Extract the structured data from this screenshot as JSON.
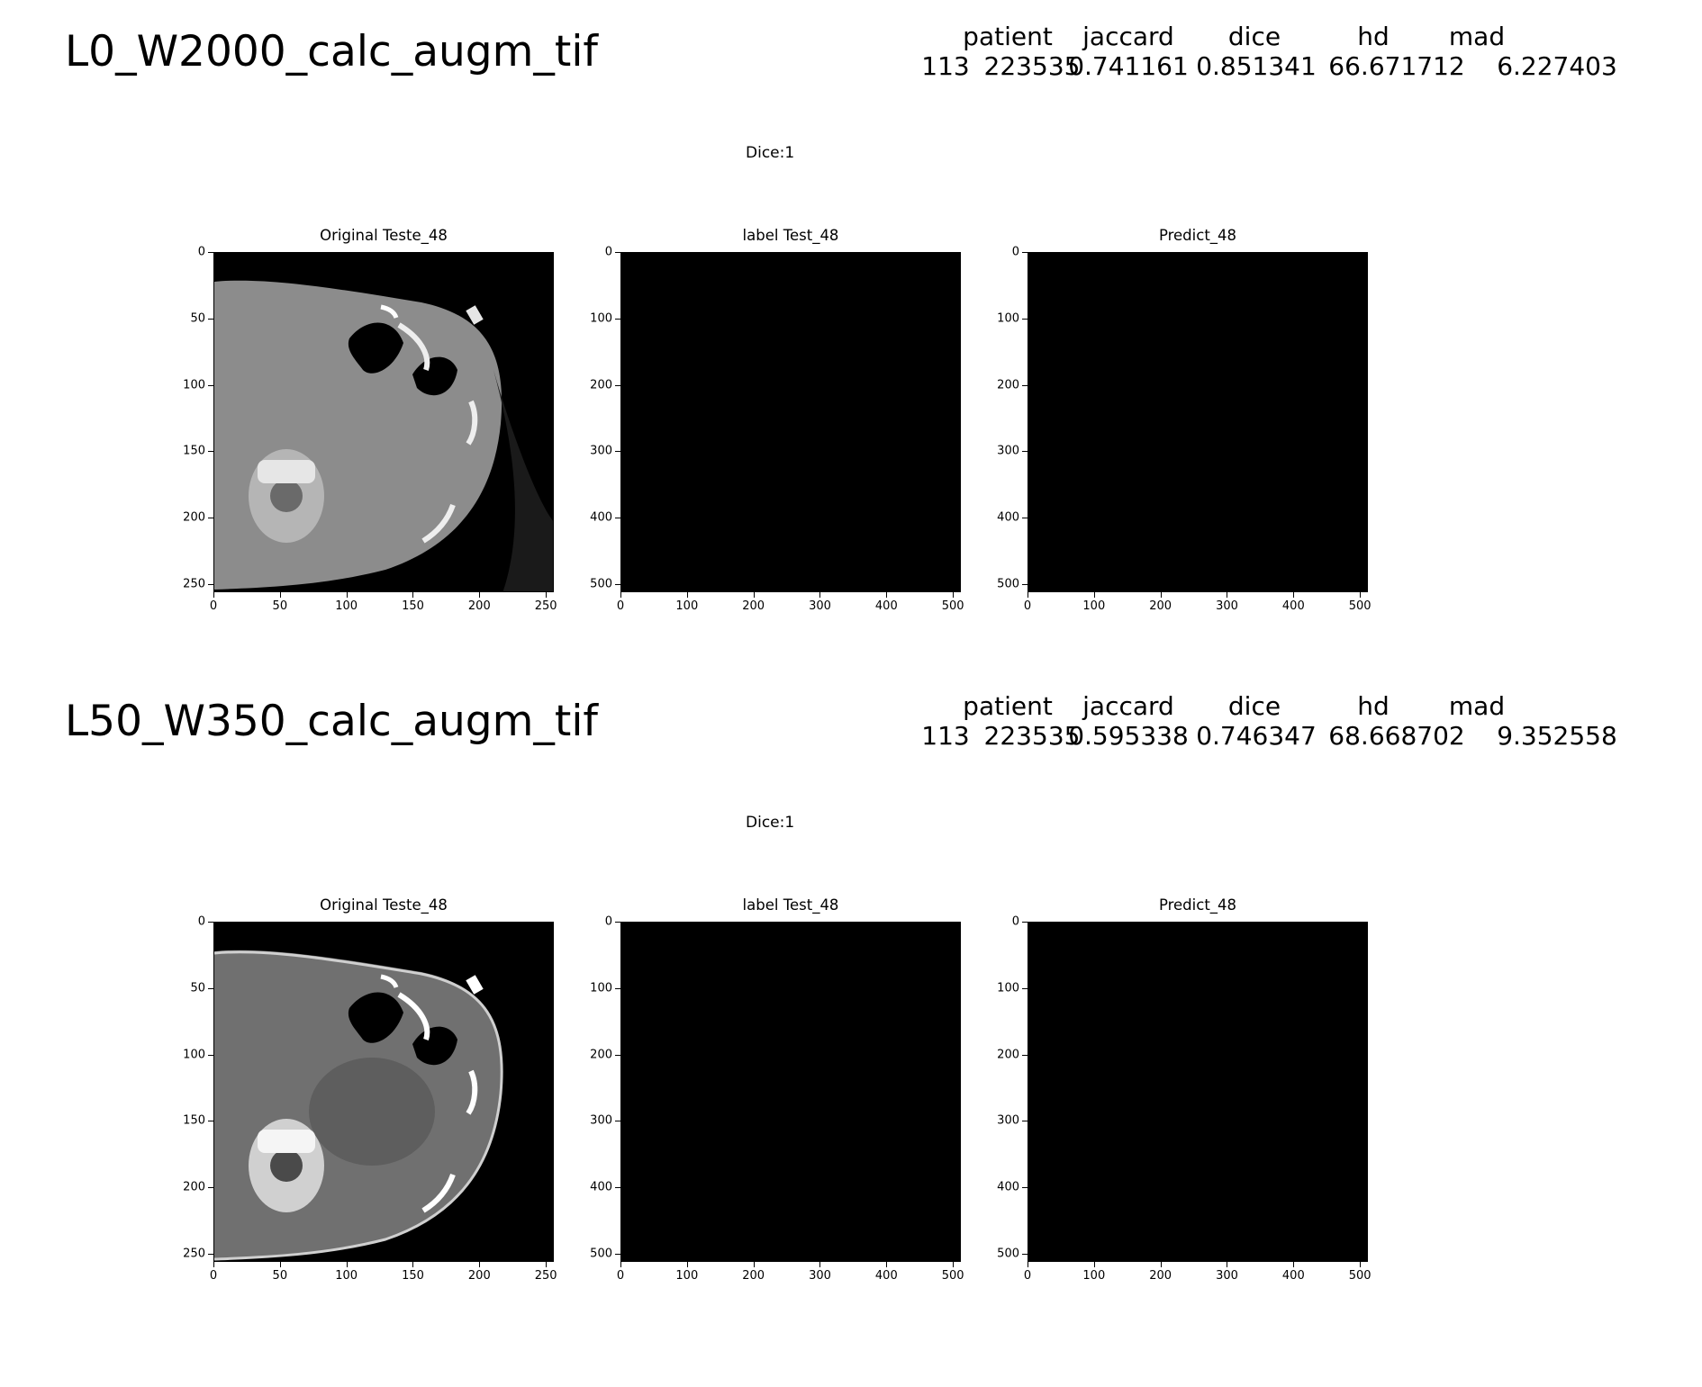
{
  "sections": [
    {
      "title": "L0_W2000_calc_augm_tif",
      "metrics": {
        "header": [
          "patient",
          "jaccard",
          "dice",
          "hd",
          "mad"
        ],
        "index": "113",
        "values": [
          "223535",
          "0.741161",
          "0.851341",
          "66.671712",
          "6.227403"
        ]
      },
      "suptitle": "Dice:1",
      "panels": [
        {
          "title": "Original Teste_48",
          "image": "ct-axial-slice-lung-window",
          "yticks": [
            "0",
            "50",
            "100",
            "150",
            "200",
            "250"
          ],
          "xticks": [
            "0",
            "50",
            "100",
            "150",
            "200",
            "250"
          ]
        },
        {
          "title": "label Test_48",
          "image": "empty-black-mask",
          "yticks": [
            "0",
            "100",
            "200",
            "300",
            "400",
            "500"
          ],
          "xticks": [
            "0",
            "100",
            "200",
            "300",
            "400",
            "500"
          ]
        },
        {
          "title": "Predict_48",
          "image": "empty-black-mask",
          "yticks": [
            "0",
            "100",
            "200",
            "300",
            "400",
            "500"
          ],
          "xticks": [
            "0",
            "100",
            "200",
            "300",
            "400",
            "500"
          ]
        }
      ]
    },
    {
      "title": "L50_W350_calc_augm_tif",
      "metrics": {
        "header": [
          "patient",
          "jaccard",
          "dice",
          "hd",
          "mad"
        ],
        "index": "113",
        "values": [
          "223535",
          "0.595338",
          "0.746347",
          "68.668702",
          "9.352558"
        ]
      },
      "suptitle": "Dice:1",
      "panels": [
        {
          "title": "Original Teste_48",
          "image": "ct-axial-slice-soft-tissue-window",
          "yticks": [
            "0",
            "50",
            "100",
            "150",
            "200",
            "250"
          ],
          "xticks": [
            "0",
            "50",
            "100",
            "150",
            "200",
            "250"
          ]
        },
        {
          "title": "label Test_48",
          "image": "empty-black-mask",
          "yticks": [
            "0",
            "100",
            "200",
            "300",
            "400",
            "500"
          ],
          "xticks": [
            "0",
            "100",
            "200",
            "300",
            "400",
            "500"
          ]
        },
        {
          "title": "Predict_48",
          "image": "empty-black-mask",
          "yticks": [
            "0",
            "100",
            "200",
            "300",
            "400",
            "500"
          ],
          "xticks": [
            "0",
            "100",
            "200",
            "300",
            "400",
            "500"
          ]
        }
      ]
    }
  ]
}
